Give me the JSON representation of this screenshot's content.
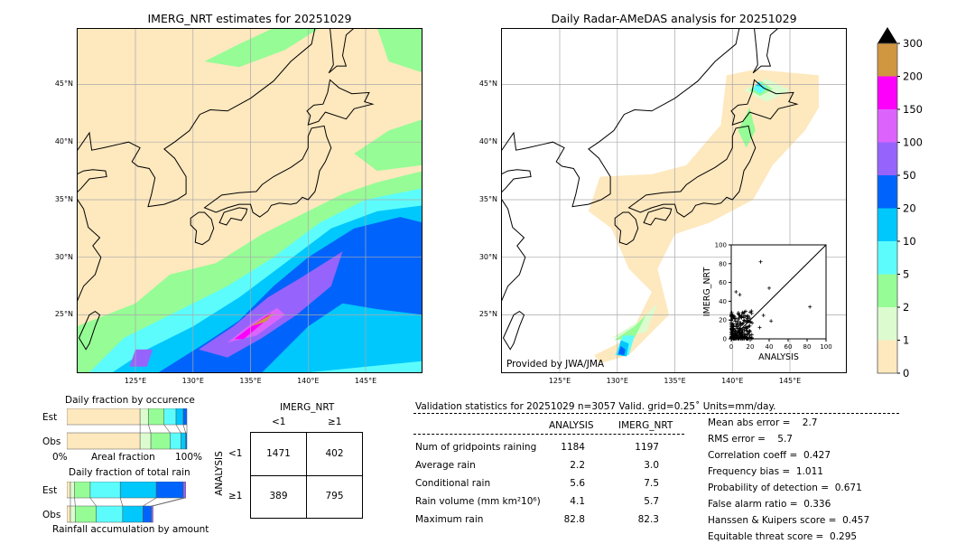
{
  "colors": {
    "cream": "#fee8be",
    "light_green": "#dcfcd0",
    "green": "#96fc96",
    "cyan": "#5cfcfc",
    "deep_sky": "#00c8fc",
    "blue": "#0064fc",
    "purple": "#9664fc",
    "violet": "#dc64fc",
    "magenta": "#fc00fc",
    "gold": "#d09640",
    "grid": "#aaaaaa"
  },
  "left_map": {
    "title": "IMERG_NRT estimates for 20251029",
    "lat_labels": [
      "45°N",
      "40°N",
      "35°N",
      "30°N",
      "25°N"
    ],
    "lon_labels": [
      "125°E",
      "130°E",
      "135°E",
      "140°E",
      "145°E"
    ]
  },
  "right_map": {
    "title": "Daily Radar-AMeDAS analysis for 20251029",
    "lat_labels": [
      "45°N",
      "40°N",
      "35°N",
      "30°N",
      "25°N"
    ],
    "lon_labels": [
      "125°E",
      "130°E",
      "135°E",
      "140°E",
      "145°E"
    ],
    "credit": "Provided by JWA/JMA"
  },
  "colorbar": {
    "tick_labels": [
      "0",
      "1",
      "2",
      "5",
      "10",
      "20",
      "50",
      "100",
      "150",
      "200",
      "300"
    ],
    "extend": "max"
  },
  "chart_data": [
    {
      "type": "scatter",
      "xlabel": "ANALYSIS",
      "ylabel": "IMERG_NRT",
      "xlim": [
        0,
        100
      ],
      "ylim": [
        0,
        100
      ],
      "x_ticks": [
        "0",
        "20",
        "40",
        "60",
        "80",
        "100"
      ],
      "y_ticks": [
        "0",
        "20",
        "40",
        "60",
        "80",
        "100"
      ],
      "reference_line": "y = x",
      "marker": "+",
      "notable_points": [
        [
          31,
          82
        ],
        [
          40,
          54
        ],
        [
          83,
          34
        ],
        [
          9,
          47
        ],
        [
          5,
          50
        ],
        [
          34,
          25
        ],
        [
          42,
          19
        ],
        [
          30,
          12
        ],
        [
          22,
          17
        ]
      ]
    },
    {
      "type": "bar",
      "title": "Daily fraction by occurence",
      "xlabel": "Areal fraction",
      "x_tick_labels": [
        "0%",
        "100%"
      ],
      "stacked": true,
      "categories": [
        "Est",
        "Obs"
      ],
      "bins": [
        "0-1",
        "1-2",
        "2-5",
        "5-10",
        "10-20",
        "20-50"
      ],
      "series": [
        {
          "category": "Est",
          "values": [
            0.61,
            0.07,
            0.13,
            0.1,
            0.06,
            0.03
          ]
        },
        {
          "category": "Obs",
          "values": [
            0.61,
            0.09,
            0.16,
            0.09,
            0.04,
            0.01
          ]
        }
      ]
    },
    {
      "type": "bar",
      "title": "Daily fraction of total rain",
      "xlabel": "Rainfall accumulation by amount",
      "stacked": true,
      "categories": [
        "Est",
        "Obs"
      ],
      "bins": [
        "0-1",
        "1-2",
        "2-5",
        "5-10",
        "10-20",
        "20-50",
        "50-100"
      ],
      "series": [
        {
          "category": "Est",
          "values": [
            0.03,
            0.035,
            0.13,
            0.25,
            0.3,
            0.225,
            0.02
          ]
        },
        {
          "category": "Obs",
          "values": [
            0.03,
            0.04,
            0.175,
            0.22,
            0.17,
            0.07,
            0.013
          ]
        }
      ]
    },
    {
      "type": "table",
      "col_title": "IMERG_NRT",
      "row_title": "ANALYSIS",
      "col_labels": [
        "<1",
        "≥1"
      ],
      "row_labels": [
        "<1",
        "≥1"
      ],
      "cells": [
        [
          "1471",
          "402"
        ],
        [
          "389",
          "795"
        ]
      ]
    }
  ],
  "stats": {
    "header": "Validation statistics for 20251029  n=3057 Valid. grid=0.25˚ Units=mm/day.",
    "col_analysis": "ANALYSIS",
    "col_imerg": "IMERG_NRT",
    "rows": [
      {
        "label": "Num of gridpoints raining",
        "analysis": "1184",
        "imerg": "1197"
      },
      {
        "label": "Average rain",
        "analysis": "2.2",
        "imerg": "3.0"
      },
      {
        "label": "Conditional rain",
        "analysis": "5.6",
        "imerg": "7.5"
      },
      {
        "label": "Rain volume (mm km²10⁶)",
        "analysis": "4.1",
        "imerg": "5.7"
      },
      {
        "label": "Maximum rain",
        "analysis": "82.8",
        "imerg": "82.3"
      }
    ],
    "scores": [
      "Mean abs error =    2.7",
      "RMS error =    5.7",
      "Correlation coeff =  0.427",
      "Frequency bias =  1.011",
      "Probability of detection =  0.671",
      "False alarm ratio =  0.336",
      "Hanssen & Kuipers score =  0.457",
      "Equitable threat score =  0.295"
    ]
  }
}
